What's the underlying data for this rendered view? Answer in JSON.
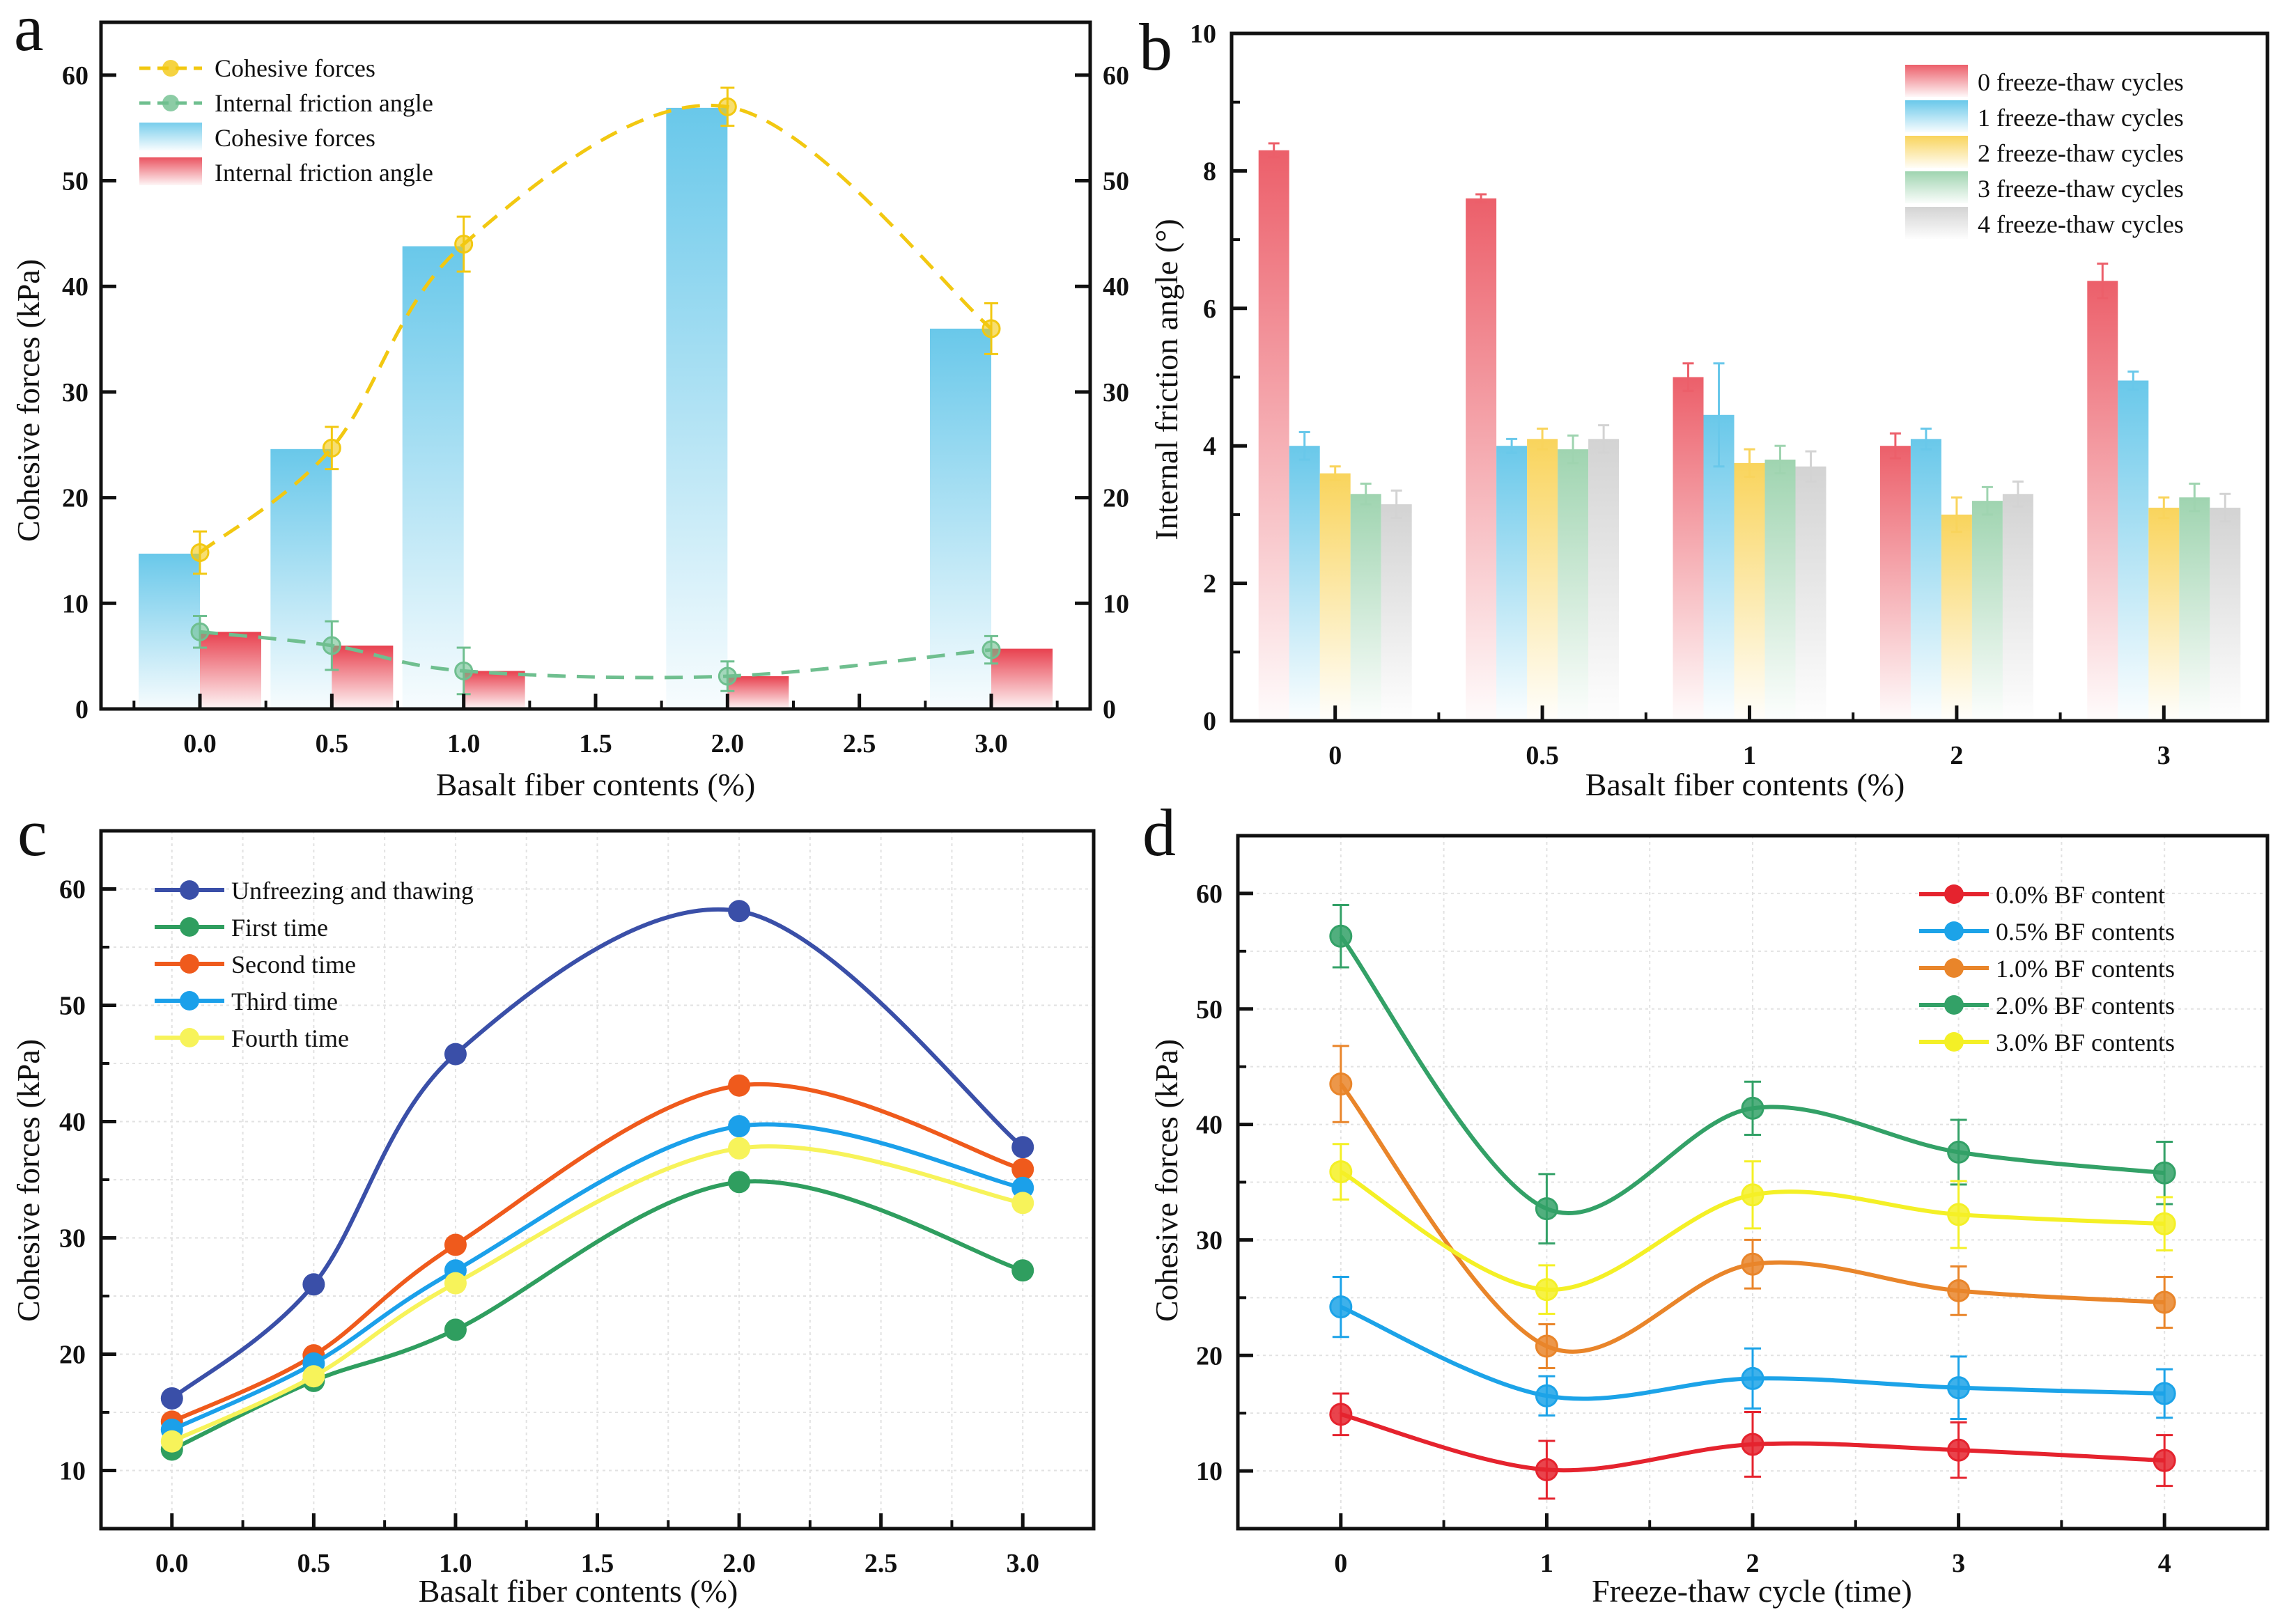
{
  "figure": {
    "panels": [
      "a",
      "b",
      "c",
      "d"
    ]
  },
  "chart_data": [
    {
      "id": "a",
      "panel_label": "a",
      "type": "bar",
      "title": "",
      "xlabel": "Basalt fiber contents (%)",
      "ylabel": "Cohesive forces (kPa)",
      "ylabel_right": "",
      "ylim": [
        0,
        65
      ],
      "yticks": [
        0,
        10,
        20,
        30,
        40,
        50,
        60
      ],
      "xlim": [
        -0.375,
        3.375
      ],
      "xticks": [
        0.0,
        0.5,
        1.0,
        1.5,
        2.0,
        2.5,
        3.0
      ],
      "xtick_labels": [
        "0.0",
        "0.5",
        "1.0",
        "1.5",
        "2.0",
        "2.5",
        "3.0"
      ],
      "categories_x": [
        0.0,
        0.5,
        1.0,
        2.0,
        3.0
      ],
      "grid": false,
      "legend_position": "top-left",
      "legend": [
        {
          "label": "Cohesive forces",
          "kind": "dashed-line-marker",
          "color": "#f2c811"
        },
        {
          "label": "Internal friction angle",
          "kind": "dashed-line-marker",
          "color": "#6fbf8f"
        },
        {
          "label": "Cohesive forces",
          "kind": "gradient-bar",
          "color": "#69c8ea"
        },
        {
          "label": "Internal friction angle",
          "kind": "gradient-bar",
          "color": "#e8414f"
        }
      ],
      "series": [
        {
          "name": "Cohesive forces",
          "kind": "bar",
          "color": "#69c8ea",
          "values": [
            14.7,
            24.6,
            43.8,
            56.9,
            36.0
          ]
        },
        {
          "name": "Internal friction angle",
          "kind": "bar",
          "color": "#e8414f",
          "values": [
            7.3,
            6.0,
            3.6,
            3.1,
            5.7
          ]
        },
        {
          "name": "Cohesive forces",
          "kind": "line",
          "color": "#f2c811",
          "values": [
            14.8,
            24.7,
            44.0,
            57.0,
            36.0
          ],
          "errors": [
            2.0,
            2.0,
            2.6,
            1.8,
            2.4
          ]
        },
        {
          "name": "Internal friction angle",
          "kind": "line",
          "color": "#6fbf8f",
          "values": [
            7.3,
            6.0,
            3.6,
            3.1,
            5.6
          ],
          "errors": [
            1.5,
            2.3,
            2.2,
            1.4,
            1.3
          ]
        }
      ]
    },
    {
      "id": "b",
      "panel_label": "b",
      "type": "bar",
      "title": "",
      "xlabel": "Basalt fiber contents (%)",
      "ylabel": "Internal friction angle (°)",
      "ylim": [
        0,
        10
      ],
      "yticks": [
        0,
        2,
        4,
        6,
        8,
        10
      ],
      "categories": [
        "0",
        "0.5",
        "1",
        "2",
        "3"
      ],
      "grid": false,
      "legend_position": "top-right",
      "series": [
        {
          "name": "0 freeze-thaw cycles",
          "color": "#ec5f6a",
          "values": [
            8.3,
            7.6,
            5.0,
            4.0,
            6.4
          ],
          "errors": [
            0.1,
            0.06,
            0.2,
            0.18,
            0.25
          ]
        },
        {
          "name": "1 freeze-thaw cycles",
          "color": "#69c8ea",
          "values": [
            4.0,
            4.0,
            4.45,
            4.1,
            4.95
          ],
          "errors": [
            0.2,
            0.1,
            0.75,
            0.15,
            0.13
          ]
        },
        {
          "name": "2 freeze-thaw cycles",
          "color": "#f9d45c",
          "values": [
            3.6,
            4.1,
            3.75,
            3.0,
            3.1
          ],
          "errors": [
            0.1,
            0.15,
            0.2,
            0.25,
            0.15
          ]
        },
        {
          "name": "3 freeze-thaw cycles",
          "color": "#9fd4b0",
          "values": [
            3.3,
            3.95,
            3.8,
            3.2,
            3.25
          ],
          "errors": [
            0.15,
            0.2,
            0.2,
            0.2,
            0.2
          ]
        },
        {
          "name": "4 freeze-thaw cycles",
          "color": "#d3d3d3",
          "values": [
            3.15,
            4.1,
            3.7,
            3.3,
            3.1
          ],
          "errors": [
            0.2,
            0.2,
            0.22,
            0.18,
            0.2
          ]
        }
      ]
    },
    {
      "id": "c",
      "panel_label": "c",
      "type": "line",
      "title": "",
      "xlabel": "Basalt fiber contents (%)",
      "ylabel": "Cohesive forces (kPa)",
      "ylim": [
        5,
        65
      ],
      "yticks": [
        10,
        20,
        30,
        40,
        50,
        60
      ],
      "xlim": [
        -0.25,
        3.25
      ],
      "xticks": [
        0.0,
        0.5,
        1.0,
        1.5,
        2.0,
        2.5,
        3.0
      ],
      "xtick_labels": [
        "0.0",
        "0.5",
        "1.0",
        "1.5",
        "2.0",
        "2.5",
        "3.0"
      ],
      "x": [
        0.0,
        0.5,
        1.0,
        2.0,
        3.0
      ],
      "grid": true,
      "legend_position": "top-left",
      "series": [
        {
          "name": "Unfreezing and thawing",
          "color": "#3a4fa8",
          "values": [
            16.2,
            26.0,
            45.8,
            58.1,
            37.8
          ]
        },
        {
          "name": "First time",
          "color": "#2f9e5f",
          "values": [
            11.8,
            17.7,
            22.1,
            34.8,
            27.2
          ]
        },
        {
          "name": "Second time",
          "color": "#ef5a1c",
          "values": [
            14.2,
            19.9,
            29.4,
            43.1,
            35.9
          ]
        },
        {
          "name": "Third time",
          "color": "#1ba0ea",
          "values": [
            13.5,
            19.2,
            27.2,
            39.6,
            34.3
          ]
        },
        {
          "name": "Fourth time",
          "color": "#f7f35a",
          "values": [
            12.5,
            18.1,
            26.1,
            37.7,
            33.0
          ]
        }
      ]
    },
    {
      "id": "d",
      "panel_label": "d",
      "type": "line",
      "title": "",
      "xlabel": "Freeze-thaw cycle (time)",
      "ylabel": "Cohesive forces (kPa)",
      "ylim": [
        5,
        65
      ],
      "yticks": [
        10,
        20,
        30,
        40,
        50,
        60
      ],
      "xlim": [
        -0.5,
        4.5
      ],
      "xticks": [
        0,
        1,
        2,
        3,
        4
      ],
      "xtick_labels": [
        "0",
        "1",
        "2",
        "3",
        "4"
      ],
      "x": [
        0,
        1,
        2,
        3,
        4
      ],
      "grid": true,
      "legend_position": "top-right",
      "series": [
        {
          "name": "0.0% BF content",
          "color": "#e5232e",
          "values": [
            14.9,
            10.1,
            12.3,
            11.8,
            10.9
          ],
          "errors": [
            1.8,
            2.5,
            2.8,
            2.4,
            2.2
          ]
        },
        {
          "name": "0.5% BF contents",
          "color": "#1ca3e8",
          "values": [
            24.2,
            16.5,
            18.0,
            17.2,
            16.7
          ],
          "errors": [
            2.6,
            1.7,
            2.6,
            2.7,
            2.1
          ]
        },
        {
          "name": "1.0% BF contents",
          "color": "#e9852a",
          "values": [
            43.5,
            20.8,
            27.9,
            25.6,
            24.6
          ],
          "errors": [
            3.3,
            1.9,
            2.1,
            2.1,
            2.2
          ]
        },
        {
          "name": "2.0% BF contents",
          "color": "#33a167",
          "values": [
            56.3,
            32.7,
            41.4,
            37.6,
            35.8
          ],
          "errors": [
            2.7,
            3.0,
            2.3,
            2.8,
            2.7
          ]
        },
        {
          "name": "3.0% BF contents",
          "color": "#f4f026",
          "values": [
            35.9,
            25.7,
            33.9,
            32.2,
            31.4
          ],
          "errors": [
            2.4,
            2.1,
            2.9,
            2.9,
            2.3
          ]
        }
      ]
    }
  ]
}
